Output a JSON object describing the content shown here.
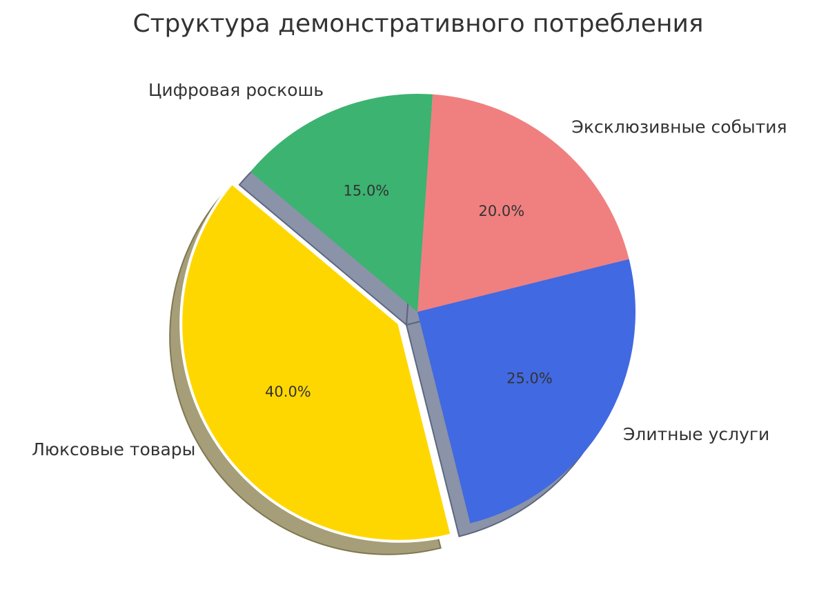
{
  "chart_data": {
    "type": "pie",
    "title": "Структура демонстративного потребления",
    "categories": [
      "Люксовые товары",
      "Элитные услуги",
      "Эксклюзивные события",
      "Цифровая роскошь"
    ],
    "values": [
      40.0,
      25.0,
      20.0,
      15.0
    ],
    "value_labels": [
      "40.0%",
      "25.0%",
      "20.0%",
      "15.0%"
    ],
    "colors": [
      "#ffd700",
      "#4169e1",
      "#f08080",
      "#3cb371"
    ],
    "exploded": [
      "Люксовые товары"
    ],
    "shadow": true,
    "start_angle_deg": 140,
    "direction": "counterclockwise"
  }
}
